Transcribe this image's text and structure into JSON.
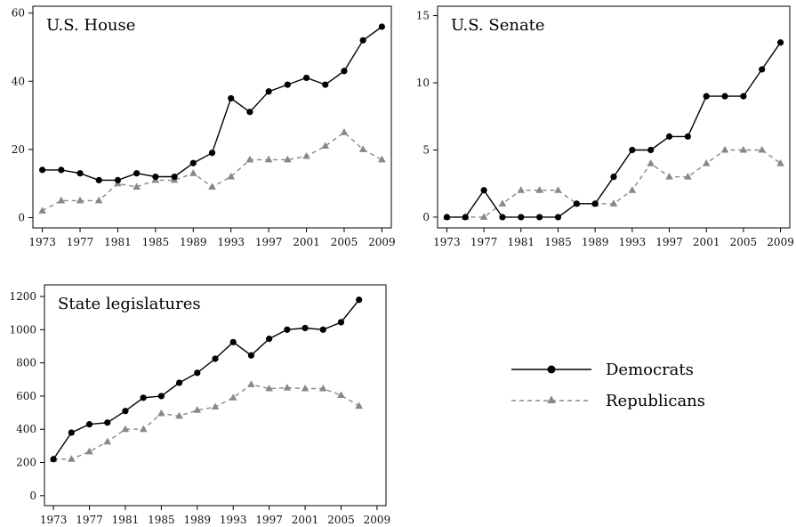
{
  "chart_data": [
    {
      "type": "line",
      "title": "U.S. House",
      "x": [
        1973,
        1975,
        1977,
        1979,
        1981,
        1983,
        1985,
        1987,
        1989,
        1991,
        1993,
        1995,
        1997,
        1999,
        2001,
        2003,
        2005,
        2007,
        2009
      ],
      "xticks": [
        "1973",
        "1977",
        "1981",
        "1985",
        "1989",
        "1993",
        "1997",
        "2001",
        "2005",
        "2009"
      ],
      "yticks": [
        "0",
        "20",
        "40",
        "60"
      ],
      "xlim": [
        1972,
        2010
      ],
      "ylim": [
        -3,
        62
      ],
      "series": [
        {
          "name": "Democrats",
          "values": [
            14,
            14,
            13,
            11,
            11,
            13,
            12,
            12,
            16,
            19,
            35,
            31,
            37,
            39,
            41,
            39,
            43,
            52,
            56
          ]
        },
        {
          "name": "Republicans",
          "values": [
            2,
            5,
            5,
            5,
            10,
            9,
            11,
            11,
            13,
            9,
            12,
            17,
            17,
            17,
            18,
            21,
            25,
            20,
            17
          ]
        }
      ]
    },
    {
      "type": "line",
      "title": "U.S. Senate",
      "x": [
        1973,
        1975,
        1977,
        1979,
        1981,
        1983,
        1985,
        1987,
        1989,
        1991,
        1993,
        1995,
        1997,
        1999,
        2001,
        2003,
        2005,
        2007,
        2009
      ],
      "xticks": [
        "1973",
        "1977",
        "1981",
        "1985",
        "1989",
        "1993",
        "1997",
        "2001",
        "2005",
        "2009"
      ],
      "yticks": [
        "0",
        "5",
        "10",
        "15"
      ],
      "xlim": [
        1972,
        2010
      ],
      "ylim": [
        -0.8,
        15.7
      ],
      "series": [
        {
          "name": "Democrats",
          "values": [
            0,
            0,
            2,
            0,
            0,
            0,
            0,
            1,
            1,
            3,
            5,
            5,
            6,
            6,
            9,
            9,
            9,
            11,
            13
          ]
        },
        {
          "name": "Republicans",
          "values": [
            0,
            0,
            0,
            1,
            2,
            2,
            2,
            1,
            1,
            1,
            2,
            4,
            3,
            3,
            4,
            5,
            5,
            5,
            4
          ]
        }
      ]
    },
    {
      "type": "line",
      "title": "State legislatures",
      "x": [
        1973,
        1975,
        1977,
        1979,
        1981,
        1983,
        1985,
        1987,
        1989,
        1991,
        1993,
        1995,
        1997,
        1999,
        2001,
        2003,
        2005,
        2007
      ],
      "xticks": [
        "1973",
        "1977",
        "1981",
        "1985",
        "1989",
        "1993",
        "1997",
        "2001",
        "2005",
        "2009"
      ],
      "yticks": [
        "0",
        "200",
        "400",
        "600",
        "800",
        "1000",
        "1200"
      ],
      "xlim": [
        1972,
        2010
      ],
      "ylim": [
        -60,
        1270
      ],
      "series": [
        {
          "name": "Democrats",
          "values": [
            220,
            380,
            430,
            440,
            510,
            590,
            600,
            680,
            740,
            825,
            925,
            845,
            945,
            1000,
            1010,
            1000,
            1045,
            1180
          ]
        },
        {
          "name": "Republicans",
          "values": [
            220,
            220,
            265,
            325,
            400,
            400,
            495,
            480,
            515,
            535,
            590,
            670,
            645,
            650,
            645,
            645,
            605,
            540
          ]
        }
      ]
    }
  ],
  "legend": {
    "democrats": "Democrats",
    "republicans": "Republicans",
    "colors": {
      "democrats": "#000000",
      "republicans": "#888888"
    }
  }
}
